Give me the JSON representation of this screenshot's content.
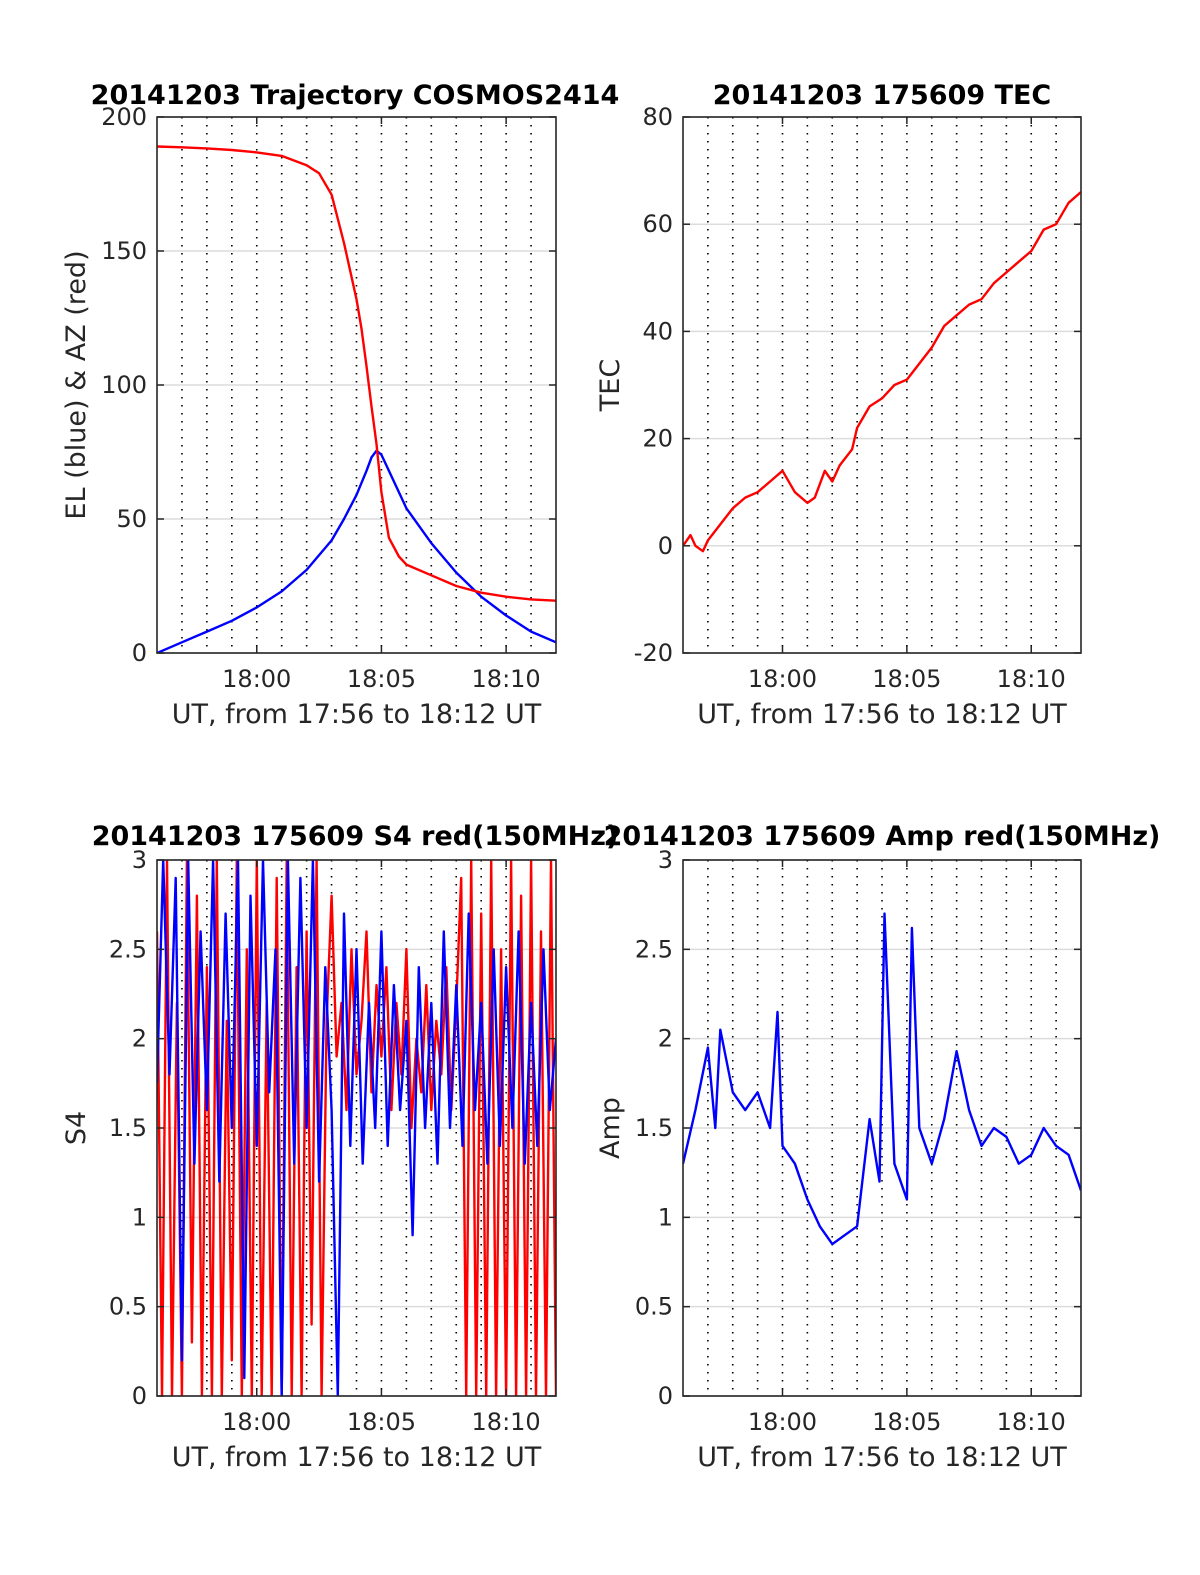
{
  "figure": {
    "grid": "dotted vertical every minute, solid horizontal at y ticks",
    "colors": {
      "red": "#ff0000",
      "blue": "#0000ff",
      "grid": "#262626"
    }
  },
  "chart_data": [
    {
      "type": "line",
      "title": "20141203 Trajectory COSMOS2414",
      "xlabel": "UT, from 17:56 to 18:12 UT",
      "ylabel": "EL (blue) & AZ (red)",
      "x_unit": "minutes after 17:56 UT",
      "xlim": [
        0,
        16
      ],
      "ylim": [
        0,
        200
      ],
      "yticks": [
        0,
        50,
        100,
        150,
        200
      ],
      "xticks": [
        {
          "x": 4,
          "label": "18:00"
        },
        {
          "x": 9,
          "label": "18:05"
        },
        {
          "x": 14,
          "label": "18:10"
        }
      ],
      "series": [
        {
          "label": "EL",
          "color": "#0000ff",
          "x": [
            0,
            1,
            2,
            3,
            4,
            5,
            6,
            7,
            7.5,
            8,
            8.4,
            8.6,
            8.8,
            9,
            9.3,
            10,
            11,
            12,
            13,
            14,
            15,
            16
          ],
          "y": [
            0,
            4,
            8,
            12,
            17,
            23,
            31,
            42,
            50,
            59,
            68,
            73,
            75.5,
            74,
            68,
            54,
            41,
            30,
            21,
            14,
            8,
            4
          ]
        },
        {
          "label": "AZ",
          "color": "#ff0000",
          "x": [
            0,
            1,
            2,
            3,
            4,
            5,
            6,
            6.5,
            7,
            7.5,
            8,
            8.2,
            8.4,
            8.6,
            8.8,
            9,
            9.3,
            9.7,
            10,
            11,
            12,
            13,
            14,
            15,
            16
          ],
          "y": [
            189,
            188.7,
            188.3,
            187.7,
            186.8,
            185.5,
            182,
            179,
            171,
            153,
            132,
            121,
            107,
            92,
            78,
            60,
            43,
            36,
            33,
            29,
            25,
            22.5,
            21,
            20,
            19.5
          ]
        }
      ]
    },
    {
      "type": "line",
      "title": "20141203 175609 TEC",
      "xlabel": "UT, from 17:56 to 18:12 UT",
      "ylabel": "TEC",
      "x_unit": "minutes after 17:56 UT",
      "xlim": [
        0,
        16
      ],
      "ylim": [
        -20,
        80
      ],
      "yticks": [
        -20,
        0,
        20,
        40,
        60,
        80
      ],
      "xticks": [
        {
          "x": 4,
          "label": "18:00"
        },
        {
          "x": 9,
          "label": "18:05"
        },
        {
          "x": 14,
          "label": "18:10"
        }
      ],
      "series": [
        {
          "label": "TEC",
          "color": "#ff0000",
          "x": [
            0,
            0.3,
            0.5,
            0.8,
            1,
            1.5,
            2,
            2.5,
            3,
            3.5,
            4,
            4.5,
            5,
            5.3,
            5.7,
            6,
            6.3,
            6.8,
            7,
            7.5,
            8,
            8.5,
            9,
            9.5,
            10,
            10.5,
            11,
            11.5,
            12,
            12.5,
            13,
            13.5,
            14,
            14.5,
            15,
            15.5,
            16
          ],
          "y": [
            0,
            2,
            0,
            -1,
            1,
            4,
            7,
            9,
            10,
            12,
            14,
            10,
            8,
            9,
            14,
            12,
            15,
            18,
            22,
            26,
            27.5,
            30,
            31,
            34,
            37,
            41,
            43,
            45,
            46,
            49,
            51,
            53,
            55,
            59,
            60,
            64,
            66
          ]
        }
      ]
    },
    {
      "type": "line",
      "title": "20141203 175609 S4 red(150MHz)",
      "xlabel": "UT, from 17:56 to 18:12 UT",
      "ylabel": "S4",
      "x_unit": "minutes after 17:56 UT",
      "xlim": [
        0,
        16
      ],
      "ylim": [
        0,
        3
      ],
      "yticks": [
        0,
        0.5,
        1,
        1.5,
        2,
        2.5,
        3
      ],
      "ytick_labels": [
        "0",
        "0.5",
        "1",
        "1.5",
        "2",
        "2.5",
        "3"
      ],
      "xticks": [
        {
          "x": 4,
          "label": "18:00"
        },
        {
          "x": 9,
          "label": "18:05"
        },
        {
          "x": 14,
          "label": "18:10"
        }
      ],
      "series": [
        {
          "label": "red",
          "color": "#ff0000",
          "x": [
            0,
            0.2,
            0.4,
            0.6,
            0.8,
            1,
            1.2,
            1.4,
            1.6,
            1.8,
            2,
            2.2,
            2.4,
            2.6,
            2.8,
            3,
            3.2,
            3.4,
            3.6,
            3.8,
            4,
            4.2,
            4.4,
            4.6,
            4.8,
            5,
            5.2,
            5.4,
            5.6,
            5.8,
            6,
            6.2,
            6.4,
            6.6,
            6.8,
            7,
            7.2,
            7.4,
            7.6,
            7.8,
            8,
            8.2,
            8.4,
            8.6,
            8.8,
            9,
            9.2,
            9.4,
            9.6,
            9.8,
            10,
            10.2,
            10.4,
            10.6,
            10.8,
            11,
            11.2,
            11.4,
            11.6,
            11.8,
            12,
            12.2,
            12.4,
            12.6,
            12.8,
            13,
            13.2,
            13.4,
            13.6,
            13.8,
            14,
            14.2,
            14.4,
            14.6,
            14.8,
            15,
            15.2,
            15.4,
            15.6,
            15.8,
            16
          ],
          "y": [
            2.6,
            0,
            3,
            0,
            2.2,
            0,
            3,
            0.3,
            2.8,
            0,
            2.4,
            0,
            3,
            0,
            2.1,
            0.2,
            3,
            0,
            2.5,
            0,
            3,
            0,
            2.2,
            0,
            2.9,
            0,
            3,
            0,
            2.4,
            0,
            2.6,
            0.4,
            3,
            0,
            2.1,
            2.8,
            1.9,
            2.2,
            1.6,
            2.5,
            1.8,
            2.1,
            2.6,
            1.7,
            2.3,
            1.9,
            2.4,
            1.6,
            2.2,
            1.8,
            2.5,
            1.5,
            2.0,
            1.7,
            2.3,
            1.6,
            2.1,
            1.8,
            2.4,
            1.6,
            2.2,
            2.9,
            0,
            3,
            0,
            2.7,
            0,
            3,
            0,
            2.5,
            0,
            3,
            0,
            2.8,
            0,
            3,
            0,
            2.6,
            0,
            3,
            0
          ]
        },
        {
          "label": "blue",
          "color": "#0000ff",
          "x": [
            0,
            0.25,
            0.5,
            0.75,
            1,
            1.25,
            1.5,
            1.75,
            2,
            2.25,
            2.5,
            2.75,
            3,
            3.25,
            3.5,
            3.75,
            4,
            4.25,
            4.5,
            4.75,
            5,
            5.25,
            5.5,
            5.75,
            6,
            6.25,
            6.5,
            6.75,
            7,
            7.25,
            7.5,
            7.75,
            8,
            8.25,
            8.5,
            8.75,
            9,
            9.25,
            9.5,
            9.75,
            10,
            10.25,
            10.5,
            10.75,
            11,
            11.25,
            11.5,
            11.75,
            12,
            12.25,
            12.5,
            12.75,
            13,
            13.25,
            13.5,
            13.75,
            14,
            14.25,
            14.5,
            14.75,
            15,
            15.25,
            15.5,
            15.75,
            16
          ],
          "y": [
            1.75,
            3,
            1.8,
            2.9,
            0.2,
            3,
            1.3,
            2.6,
            1.6,
            3,
            1.2,
            2.7,
            1.5,
            3,
            0.1,
            2.8,
            1.4,
            3,
            1.7,
            2.5,
            0,
            3,
            1.3,
            2.9,
            1.5,
            3,
            1.2,
            2.4,
            1.6,
            0,
            2.7,
            1.4,
            2.5,
            1.3,
            2.2,
            1.5,
            2.6,
            1.4,
            2.3,
            1.6,
            2.1,
            0.9,
            2.4,
            1.5,
            2.2,
            1.3,
            2.6,
            1.5,
            2.3,
            1.4,
            2.7,
            1.6,
            2.2,
            1.3,
            2.5,
            1.4,
            2.4,
            1.5,
            2.6,
            1.3,
            2.2,
            1.4,
            2.5,
            1.6,
            2.0
          ]
        }
      ]
    },
    {
      "type": "line",
      "title": "20141203 175609 Amp red(150MHz)",
      "xlabel": "UT, from 17:56 to 18:12 UT",
      "ylabel": "Amp",
      "x_unit": "minutes after 17:56 UT",
      "xlim": [
        0,
        16
      ],
      "ylim": [
        0,
        3
      ],
      "yticks": [
        0,
        0.5,
        1,
        1.5,
        2,
        2.5,
        3
      ],
      "ytick_labels": [
        "0",
        "0.5",
        "1",
        "1.5",
        "2",
        "2.5",
        "3"
      ],
      "xticks": [
        {
          "x": 4,
          "label": "18:00"
        },
        {
          "x": 9,
          "label": "18:05"
        },
        {
          "x": 14,
          "label": "18:10"
        }
      ],
      "series": [
        {
          "label": "Amp",
          "color": "#0000ff",
          "x": [
            0,
            0.5,
            1,
            1.3,
            1.5,
            2,
            2.5,
            3,
            3.5,
            3.8,
            4,
            4.5,
            5,
            5.5,
            6,
            6.5,
            7,
            7.5,
            7.9,
            8.1,
            8.5,
            9,
            9.2,
            9.5,
            10,
            10.5,
            11,
            11.5,
            12,
            12.5,
            13,
            13.5,
            14,
            14.5,
            15,
            15.5,
            16
          ],
          "y": [
            1.3,
            1.6,
            1.95,
            1.5,
            2.05,
            1.7,
            1.6,
            1.7,
            1.5,
            2.15,
            1.4,
            1.3,
            1.1,
            0.95,
            0.85,
            0.9,
            0.95,
            1.55,
            1.2,
            2.7,
            1.3,
            1.1,
            2.62,
            1.5,
            1.3,
            1.55,
            1.93,
            1.6,
            1.4,
            1.5,
            1.45,
            1.3,
            1.35,
            1.5,
            1.4,
            1.35,
            1.15
          ]
        }
      ]
    }
  ]
}
